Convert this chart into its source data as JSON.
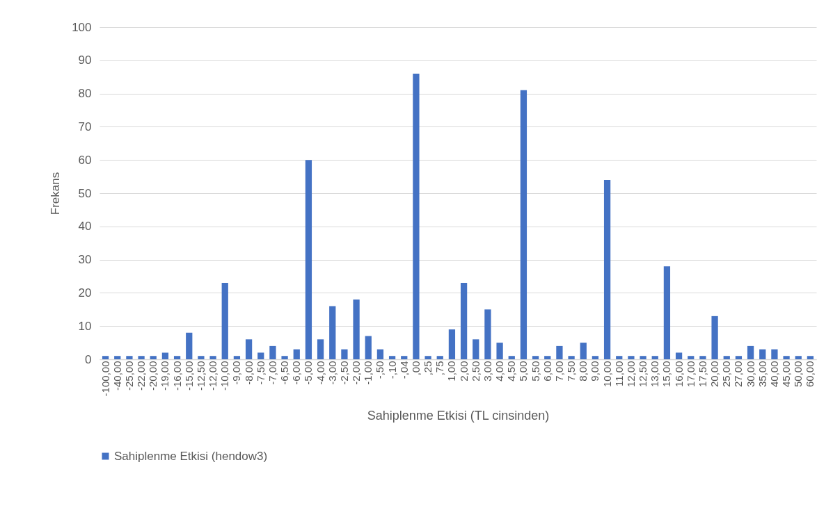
{
  "chart_data": {
    "type": "bar",
    "xlabel": "Sahiplenme Etkisi (TL cinsinden)",
    "ylabel": "Frekans",
    "categories": [
      "-100,00",
      "-40,00",
      "-25,00",
      "-22,00",
      "-20,00",
      "-19,00",
      "-16,00",
      "-15,00",
      "-12,50",
      "-12,00",
      "-10,00",
      "-9,00",
      "-8,00",
      "-7,50",
      "-7,00",
      "-6,50",
      "-6,00",
      "-5,00",
      "-4,00",
      "-3,00",
      "-2,50",
      "-2,00",
      "-1,00",
      "-,50",
      "-,10",
      "-,04",
      ",00",
      ",25",
      ",75",
      "1,00",
      "2,00",
      "2,50",
      "3,00",
      "4,00",
      "4,50",
      "5,00",
      "5,50",
      "6,00",
      "7,00",
      "7,50",
      "8,00",
      "9,00",
      "10,00",
      "11,00",
      "12,00",
      "12,50",
      "13,00",
      "15,00",
      "16,00",
      "17,00",
      "17,50",
      "20,00",
      "25,00",
      "27,00",
      "30,00",
      "35,00",
      "40,00",
      "45,00",
      "50,00",
      "60,00"
    ],
    "series": [
      {
        "name": "Sahiplenme Etkisi (hendow3)",
        "color": "#4472c4",
        "values": [
          1,
          1,
          1,
          1,
          1,
          2,
          1,
          8,
          1,
          1,
          23,
          1,
          6,
          2,
          4,
          1,
          3,
          60,
          6,
          16,
          3,
          18,
          7,
          3,
          1,
          1,
          86,
          1,
          1,
          9,
          23,
          6,
          15,
          5,
          1,
          81,
          1,
          1,
          4,
          1,
          5,
          1,
          54,
          1,
          1,
          1,
          1,
          28,
          2,
          1,
          1,
          13,
          1,
          1,
          4,
          3,
          3,
          1,
          1,
          1
        ]
      }
    ],
    "ylim": [
      0,
      100
    ],
    "yticks": [
      0,
      10,
      20,
      30,
      40,
      50,
      60,
      70,
      80,
      90,
      100
    ],
    "grid": "y",
    "legend": "bottom"
  }
}
